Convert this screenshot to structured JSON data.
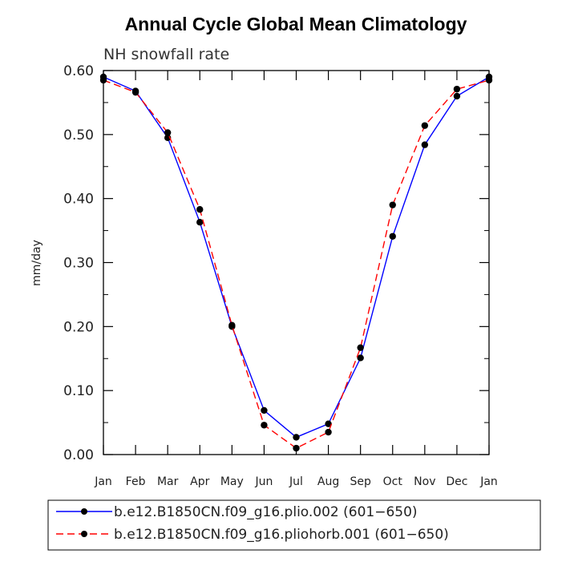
{
  "chart_data": {
    "type": "line",
    "title": "Annual Cycle Global Mean Climatology",
    "subtitle": "NH snowfall rate",
    "xlabel": "",
    "ylabel": "mm/day",
    "categories": [
      "Jan",
      "Feb",
      "Mar",
      "Apr",
      "May",
      "Jun",
      "Jul",
      "Aug",
      "Sep",
      "Oct",
      "Nov",
      "Dec",
      "Jan"
    ],
    "ylim": [
      0,
      0.6
    ],
    "yticks": [
      "0.00",
      "0.10",
      "0.20",
      "0.30",
      "0.40",
      "0.50",
      "0.60"
    ],
    "grid": false,
    "legend_position": "bottom",
    "series": [
      {
        "name": "b.e12.B1850CN.f09_g16.plio.002 (601−650)",
        "color": "#0000ff",
        "dash": "solid",
        "values": [
          0.59,
          0.568,
          0.495,
          0.363,
          0.2,
          0.069,
          0.027,
          0.048,
          0.151,
          0.341,
          0.484,
          0.56,
          0.59
        ]
      },
      {
        "name": "b.e12.B1850CN.f09_g16.pliohorb.001 (601−650)",
        "color": "#ff0000",
        "dash": "dashed",
        "values": [
          0.585,
          0.566,
          0.503,
          0.383,
          0.202,
          0.046,
          0.01,
          0.035,
          0.167,
          0.39,
          0.514,
          0.571,
          0.585
        ]
      }
    ]
  }
}
